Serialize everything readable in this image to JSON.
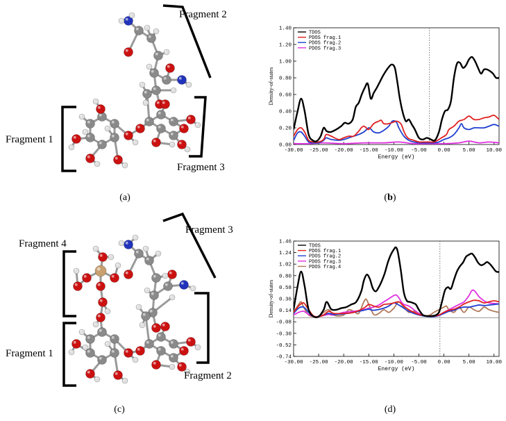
{
  "panels": [
    {
      "id": "a",
      "label": "a",
      "fragments": [
        "Fragment 1",
        "Fragment 2",
        "Fragment 3"
      ]
    },
    {
      "id": "b",
      "label": "b"
    },
    {
      "id": "c",
      "label": "c",
      "fragments": [
        "Fragment 1",
        "Fragment 2",
        "Fragment 3",
        "Fragment 4"
      ]
    },
    {
      "id": "d",
      "label": "d"
    }
  ],
  "atom_colors": {
    "carbon": "#8a8a8a",
    "oxygen": "#cc1111",
    "nitrogen": "#2233bb",
    "hydrogen": "#e0e0e0",
    "phosphorus": "#c8a070"
  },
  "chart_data": [
    {
      "id": "b",
      "type": "line",
      "xlabel": "Energy (eV)",
      "ylabel": "Density-of-states",
      "xlim": [
        -30,
        11
      ],
      "ylim": [
        0,
        1.4
      ],
      "xticks": [
        -30,
        -25,
        -20,
        -15,
        -10,
        -5,
        0,
        5,
        10
      ],
      "xtick_labels": [
        "-30.00",
        "-25.00",
        "-20.00",
        "-15.00",
        "-10.00",
        "-5.00",
        "0.00",
        "5.00",
        "10.00"
      ],
      "yticks": [
        0,
        0.2,
        0.4,
        0.6,
        0.8,
        1.0,
        1.2,
        1.4
      ],
      "ytick_labels": [
        "0.00",
        "0.20",
        "0.40",
        "0.60",
        "0.80",
        "1.00",
        "1.20",
        "1.40"
      ],
      "fermi_level": -2.9,
      "legend": [
        "TDOS",
        "PDOS frag.1",
        "PDOS frag.2",
        "PDOS frag.3"
      ],
      "legend_position": "top-left",
      "series": [
        {
          "name": "TDOS",
          "color": "#000000",
          "x": [
            -30,
            -29.2,
            -28.5,
            -27.8,
            -27,
            -26.2,
            -25.4,
            -24.6,
            -24,
            -23.4,
            -22.6,
            -21.5,
            -20.5,
            -19.8,
            -19,
            -18.2,
            -17.6,
            -17,
            -16.4,
            -15.8,
            -15.2,
            -14.6,
            -14,
            -13.4,
            -12.8,
            -12.2,
            -11.6,
            -11,
            -10.4,
            -9.8,
            -9.3,
            -8.8,
            -8.2,
            -7.6,
            -7,
            -6.4,
            -5.8,
            -5,
            -4.2,
            -3.4,
            -2.6,
            -1.8,
            -1,
            -0.4,
            0.2,
            0.8,
            1.4,
            2,
            2.6,
            3.2,
            3.8,
            4.4,
            5,
            5.6,
            6.2,
            6.8,
            7.4,
            8,
            8.6,
            9.2,
            9.8,
            10.4,
            11
          ],
          "y": [
            0.18,
            0.4,
            0.55,
            0.4,
            0.12,
            0.05,
            0.04,
            0.1,
            0.2,
            0.16,
            0.15,
            0.18,
            0.22,
            0.26,
            0.25,
            0.3,
            0.45,
            0.5,
            0.6,
            0.68,
            0.73,
            0.55,
            0.62,
            0.68,
            0.75,
            0.82,
            0.88,
            0.93,
            0.96,
            0.92,
            0.75,
            0.55,
            0.38,
            0.28,
            0.3,
            0.24,
            0.18,
            0.08,
            0.06,
            0.08,
            0.06,
            0.05,
            0.15,
            0.3,
            0.4,
            0.42,
            0.52,
            0.8,
            0.97,
            0.98,
            0.92,
            0.95,
            1.02,
            1.05,
            1.0,
            0.92,
            0.85,
            0.9,
            0.9,
            0.88,
            0.85,
            0.8,
            0.8
          ]
        },
        {
          "name": "PDOS frag.1",
          "color": "#e02020",
          "x": [
            -30,
            -29.2,
            -28.5,
            -27.8,
            -27,
            -26,
            -25,
            -24,
            -23.5,
            -22.5,
            -21,
            -20,
            -19,
            -18,
            -17,
            -16.5,
            -16,
            -15.5,
            -15,
            -14,
            -13,
            -12.5,
            -12,
            -11,
            -10,
            -9.5,
            -9,
            -8.5,
            -8,
            -7.5,
            -7,
            -6,
            -5,
            -4,
            -3,
            -2,
            -1,
            -0.5,
            0.5,
            1,
            2,
            3,
            4,
            5,
            6,
            7,
            8,
            9,
            10,
            11
          ],
          "y": [
            0.1,
            0.18,
            0.2,
            0.15,
            0.05,
            0.03,
            0.03,
            0.06,
            0.12,
            0.1,
            0.06,
            0.08,
            0.1,
            0.1,
            0.16,
            0.2,
            0.22,
            0.2,
            0.18,
            0.25,
            0.28,
            0.29,
            0.25,
            0.25,
            0.27,
            0.28,
            0.27,
            0.24,
            0.16,
            0.1,
            0.07,
            0.05,
            0.03,
            0.03,
            0.03,
            0.03,
            0.06,
            0.08,
            0.12,
            0.18,
            0.22,
            0.28,
            0.3,
            0.34,
            0.3,
            0.3,
            0.32,
            0.33,
            0.35,
            0.3
          ]
        },
        {
          "name": "PDOS frag.2",
          "color": "#1f3fd0",
          "x": [
            -30,
            -29.2,
            -28.5,
            -27.8,
            -27,
            -26,
            -25,
            -24,
            -23.5,
            -22.5,
            -21,
            -20,
            -19,
            -18,
            -17,
            -16,
            -15,
            -14.5,
            -14,
            -13,
            -12,
            -11,
            -10.3,
            -9.5,
            -9,
            -8,
            -7,
            -6,
            -5,
            -4,
            -3,
            -2,
            -1,
            0,
            1,
            2,
            3,
            3.5,
            4,
            5,
            6,
            7,
            8,
            9,
            10,
            11
          ],
          "y": [
            0.05,
            0.14,
            0.15,
            0.1,
            0.03,
            0.02,
            0.02,
            0.05,
            0.08,
            0.06,
            0.05,
            0.06,
            0.08,
            0.1,
            0.12,
            0.15,
            0.2,
            0.18,
            0.15,
            0.14,
            0.17,
            0.22,
            0.28,
            0.27,
            0.2,
            0.1,
            0.05,
            0.03,
            0.02,
            0.02,
            0.02,
            0.02,
            0.03,
            0.06,
            0.08,
            0.12,
            0.2,
            0.25,
            0.2,
            0.18,
            0.2,
            0.2,
            0.2,
            0.22,
            0.24,
            0.22
          ]
        },
        {
          "name": "PDOS frag.3",
          "color": "#e030e0",
          "x": [
            -30,
            -27,
            -24,
            -20,
            -16,
            -12,
            -9,
            -6,
            -3,
            0,
            3,
            5,
            7,
            9,
            11
          ],
          "y": [
            0.01,
            0.01,
            0.02,
            0.01,
            0.02,
            0.02,
            0.03,
            0.01,
            0.01,
            0.01,
            0.02,
            0.04,
            0.02,
            0.03,
            0.02
          ]
        }
      ]
    },
    {
      "id": "d",
      "type": "line",
      "xlabel": "Energy (eV)",
      "ylabel": "Density-of-states",
      "xlim": [
        -30,
        11
      ],
      "ylim": [
        -0.74,
        1.46
      ],
      "xticks": [
        -30,
        -25,
        -20,
        -15,
        -10,
        -5,
        0,
        5,
        10
      ],
      "xtick_labels": [
        "-30.00",
        "-25.00",
        "-20.00",
        "-15.00",
        "-10.00",
        "-5.00",
        "0.00",
        "5.00",
        "10.00"
      ],
      "yticks": [
        1.46,
        1.24,
        1.02,
        0.8,
        0.58,
        0.36,
        0.14,
        -0.08,
        -0.3,
        -0.52,
        -0.74
      ],
      "ytick_labels": [
        "1.46",
        "1.24",
        "1.02",
        "0.80",
        "0.58",
        "0.36",
        "0.14",
        "-0.08",
        "-0.30",
        "-0.52",
        "-0.74"
      ],
      "fermi_level": -0.8,
      "zero_line": 0,
      "legend": [
        "TDOS",
        "PDOS frag.1",
        "PDOS frag.2",
        "PDOS frag.3",
        "PDOS frag.4"
      ],
      "legend_position": "top-left",
      "series": [
        {
          "name": "TDOS",
          "color": "#000000",
          "x": [
            -30,
            -29.2,
            -28.5,
            -27.8,
            -27,
            -26,
            -25,
            -24,
            -23.4,
            -22.5,
            -21.5,
            -20.5,
            -19.5,
            -18.5,
            -17.5,
            -16.5,
            -16,
            -15.4,
            -14.8,
            -14.2,
            -13.6,
            -13,
            -12.4,
            -11.8,
            -11.2,
            -10.6,
            -10,
            -9.6,
            -9.2,
            -8.6,
            -8,
            -7.4,
            -6.8,
            -6.2,
            -5.6,
            -5,
            -4.2,
            -3.4,
            -2.6,
            -1.8,
            -1,
            -0.4,
            0.2,
            0.8,
            1.4,
            2,
            2.6,
            3.2,
            3.8,
            4.4,
            5,
            5.6,
            6.2,
            6.8,
            7.4,
            8,
            8.6,
            9.2,
            9.8,
            10.4,
            11
          ],
          "y": [
            0.15,
            0.6,
            0.88,
            0.6,
            0.15,
            0.02,
            0.02,
            0.15,
            0.3,
            0.16,
            0.15,
            0.18,
            0.2,
            0.25,
            0.3,
            0.5,
            0.7,
            0.82,
            0.74,
            0.56,
            0.5,
            0.58,
            0.7,
            0.85,
            1.05,
            1.2,
            1.3,
            1.34,
            1.25,
            0.9,
            0.48,
            0.32,
            0.3,
            0.28,
            0.25,
            0.15,
            0.05,
            0.03,
            0.03,
            0.04,
            0.1,
            0.3,
            0.52,
            0.58,
            0.55,
            0.72,
            0.88,
            0.98,
            1.05,
            1.16,
            1.2,
            1.22,
            1.15,
            1.05,
            1.0,
            1.02,
            1.06,
            1.02,
            0.95,
            0.88,
            0.87
          ]
        },
        {
          "name": "PDOS frag.1",
          "color": "#e02020",
          "x": [
            -30,
            -29,
            -28,
            -27,
            -26,
            -25,
            -24,
            -23,
            -22,
            -20,
            -18,
            -16,
            -15,
            -14,
            -13,
            -12,
            -11,
            -10,
            -9,
            -8,
            -7,
            -6,
            -5,
            -4,
            -3,
            -2,
            -1,
            0,
            1,
            2,
            3,
            4,
            5,
            6,
            7,
            8,
            9,
            10,
            11
          ],
          "y": [
            0.1,
            0.22,
            0.28,
            0.15,
            0.03,
            0.02,
            0.05,
            0.12,
            0.08,
            0.08,
            0.1,
            0.18,
            0.25,
            0.22,
            0.2,
            0.25,
            0.26,
            0.28,
            0.3,
            0.22,
            0.15,
            0.1,
            0.06,
            0.04,
            0.03,
            0.03,
            0.05,
            0.1,
            0.14,
            0.16,
            0.2,
            0.26,
            0.3,
            0.33,
            0.32,
            0.28,
            0.3,
            0.32,
            0.3
          ]
        },
        {
          "name": "PDOS frag.2",
          "color": "#1f3fd0",
          "x": [
            -30,
            -29,
            -28,
            -27,
            -26,
            -25,
            -24,
            -23,
            -22,
            -20,
            -18,
            -16,
            -15,
            -14,
            -12,
            -11,
            -10,
            -9,
            -8,
            -7,
            -6,
            -5,
            -4,
            -3,
            -2,
            -1,
            0,
            1,
            2,
            3,
            4,
            5,
            6,
            7,
            8,
            9,
            10,
            11
          ],
          "y": [
            0.08,
            0.18,
            0.2,
            0.1,
            0.02,
            0.02,
            0.05,
            0.08,
            0.06,
            0.07,
            0.1,
            0.14,
            0.16,
            0.14,
            0.18,
            0.22,
            0.28,
            0.24,
            0.18,
            0.12,
            0.08,
            0.05,
            0.03,
            0.02,
            0.02,
            0.04,
            0.08,
            0.12,
            0.14,
            0.18,
            0.2,
            0.2,
            0.22,
            0.24,
            0.23,
            0.24,
            0.25,
            0.26
          ]
        },
        {
          "name": "PDOS frag.3",
          "color": "#e030e0",
          "x": [
            -30,
            -29,
            -28,
            -27,
            -26,
            -25,
            -24,
            -23,
            -22,
            -20,
            -18,
            -16,
            -15,
            -14,
            -13,
            -12,
            -11,
            -10,
            -9.5,
            -9,
            -8.5,
            -8,
            -7,
            -6,
            -5,
            -4,
            -3,
            -2,
            -1,
            0,
            1,
            2,
            3,
            4,
            5,
            5.6,
            6.2,
            7,
            8,
            9,
            10,
            11
          ],
          "y": [
            0.05,
            0.1,
            0.12,
            0.06,
            0.02,
            0.02,
            0.04,
            0.06,
            0.05,
            0.1,
            0.12,
            0.15,
            0.18,
            0.2,
            0.24,
            0.3,
            0.36,
            0.42,
            0.43,
            0.38,
            0.3,
            0.25,
            0.22,
            0.15,
            0.08,
            0.04,
            0.02,
            0.02,
            0.04,
            0.1,
            0.15,
            0.2,
            0.25,
            0.3,
            0.42,
            0.52,
            0.5,
            0.4,
            0.32,
            0.28,
            0.27,
            0.26
          ]
        },
        {
          "name": "PDOS frag.4",
          "color": "#b07858",
          "x": [
            -30,
            -29,
            -28.5,
            -28,
            -27,
            -26,
            -25,
            -24,
            -23,
            -22,
            -21,
            -20,
            -19,
            -18,
            -17,
            -16,
            -15.5,
            -15,
            -14,
            -13,
            -12,
            -11,
            -10,
            -9,
            -8,
            -7,
            -6,
            -5,
            -4,
            -3,
            -2,
            -1,
            0,
            0.5,
            1,
            2,
            3,
            4,
            5,
            6,
            7,
            8,
            9,
            10,
            11
          ],
          "y": [
            0.1,
            0.25,
            0.3,
            0.2,
            0.05,
            0.02,
            0.02,
            0.1,
            0.15,
            0.05,
            0.03,
            0.05,
            0.15,
            0.12,
            0.08,
            0.3,
            0.35,
            0.25,
            0.06,
            0.08,
            0.15,
            0.1,
            0.18,
            0.3,
            0.2,
            0.1,
            0.12,
            0.08,
            0.04,
            0.04,
            0.1,
            0.15,
            0.2,
            0.22,
            0.15,
            0.1,
            0.2,
            0.1,
            0.2,
            0.15,
            0.12,
            0.2,
            0.15,
            0.12,
            0.1
          ]
        }
      ]
    }
  ]
}
